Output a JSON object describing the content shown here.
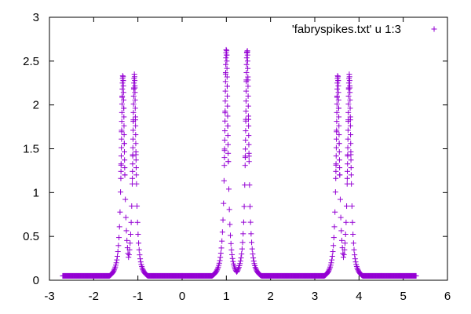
{
  "chart_data": {
    "type": "scatter",
    "title": "",
    "xlabel": "",
    "ylabel": "",
    "xlim": [
      -3,
      6
    ],
    "ylim": [
      0,
      3
    ],
    "x_ticks": [
      "-3",
      "-2",
      "-1",
      "0",
      "1",
      "2",
      "3",
      "4",
      "5",
      "6"
    ],
    "y_ticks": [
      "0",
      "0.5",
      "1",
      "1.5",
      "2",
      "2.5",
      "3"
    ],
    "grid": false,
    "legend": "top-right",
    "marker": "+",
    "series": [
      {
        "name": "'fabryspikes.txt' u 1:3",
        "color": "#9400d3",
        "x_range": [
          -2.7,
          5.3
        ],
        "peaks": [
          {
            "pairs": [
              [
                -1.34,
                2.35
              ],
              [
                -1.08,
                2.35
              ]
            ],
            "base": 0.3
          },
          {
            "pairs": [
              [
                1.0,
                2.65
              ],
              [
                1.47,
                2.65
              ]
            ],
            "base": 0.05
          },
          {
            "pairs": [
              [
                3.52,
                2.35
              ],
              [
                3.78,
                2.35
              ]
            ],
            "base": 0.3
          }
        ],
        "floor": 0.05
      }
    ]
  }
}
